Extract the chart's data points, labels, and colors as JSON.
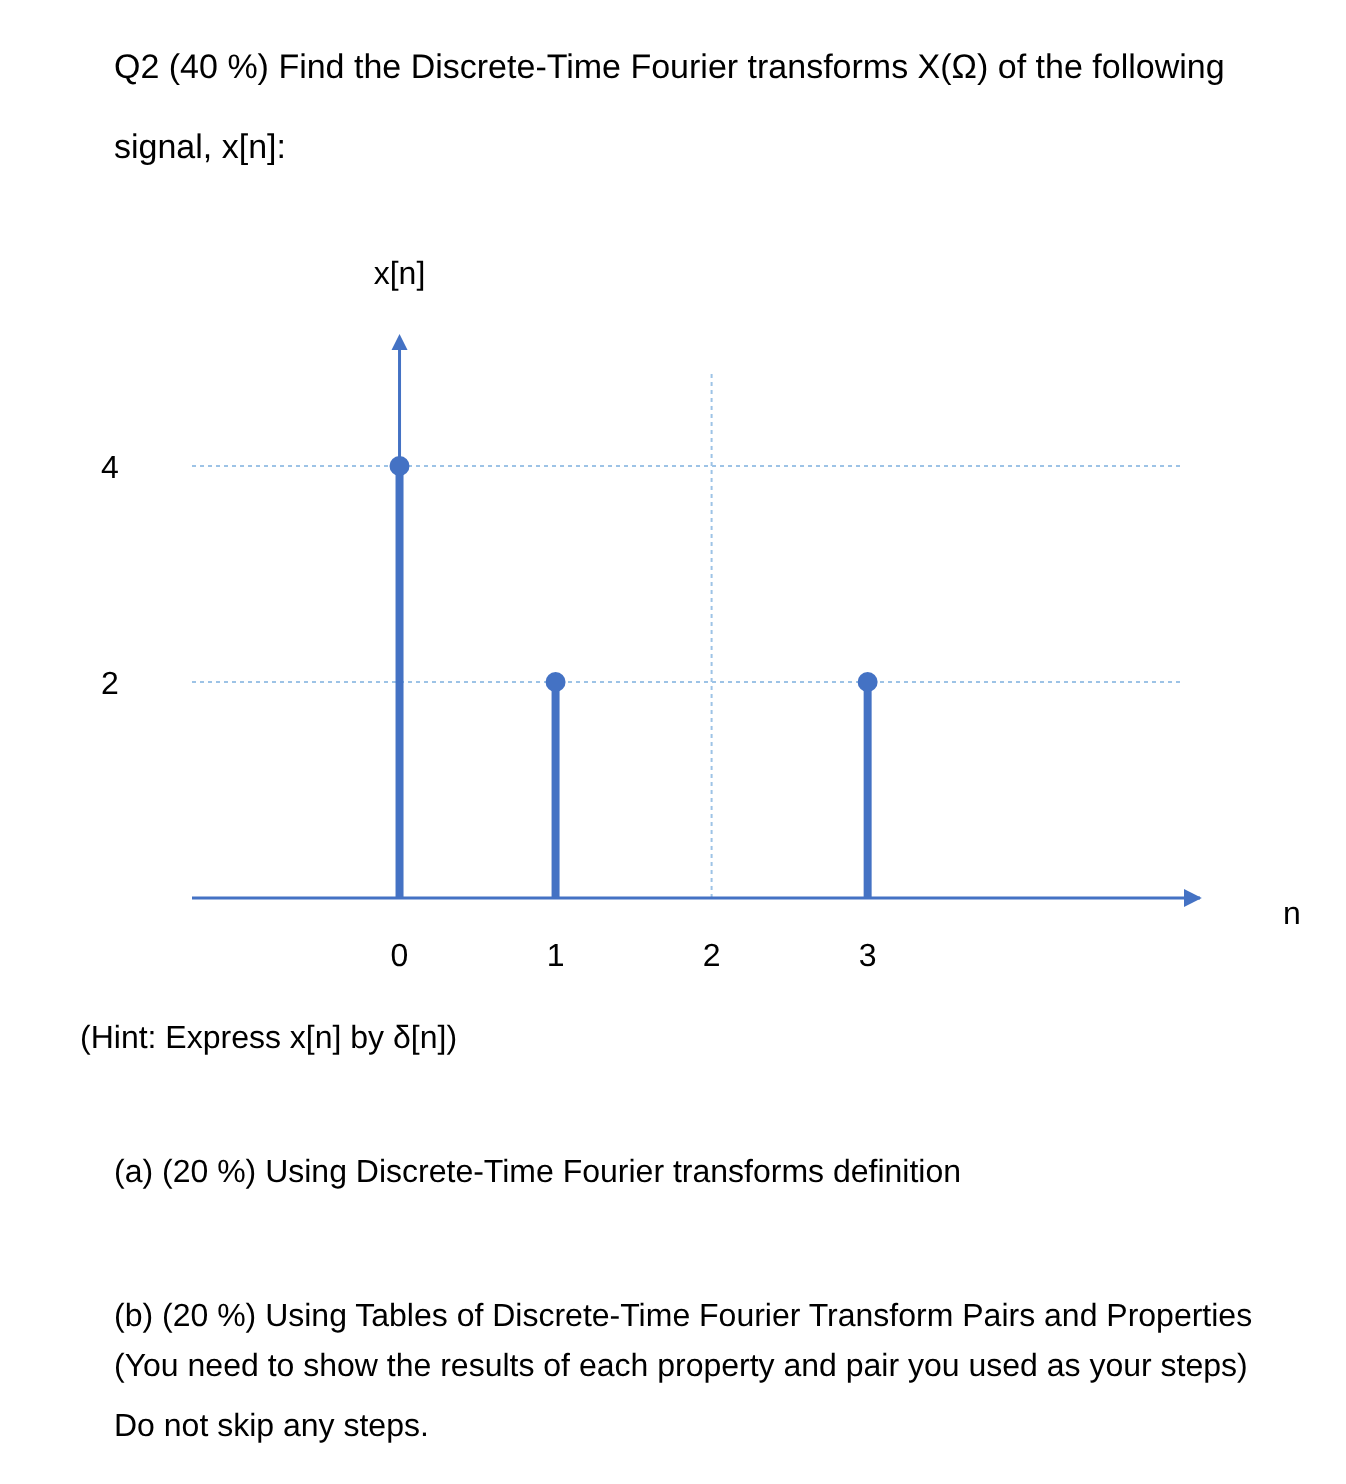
{
  "chart_data": {
    "type": "lollipop",
    "title": "Q2 (40 %) Find the Discrete-Time Fourier transforms X(Ω) of the following signal, x[n]:",
    "xlabel": "n",
    "ylabel": "x[n]",
    "x": [
      0,
      1,
      3
    ],
    "values": [
      4,
      2,
      2
    ],
    "color": "#4472c4",
    "marker": "circle",
    "xlim": [
      -1.33,
      5.13
    ],
    "xticks": [
      0,
      1,
      2,
      3
    ],
    "ylim": [
      0,
      4
    ],
    "yticks": [
      2,
      4
    ],
    "grid": "y",
    "ref_lines": [
      {
        "axis": "x",
        "value": 2,
        "line_style": "dotted",
        "color": "#9dc3e6"
      }
    ],
    "annotations": [
      "(Hint: Express x[n] by δ[n])",
      "(a) (20 %) Using Discrete-Time Fourier transforms definition",
      "(b) (20 %) Using Tables of Discrete-Time Fourier Transform Pairs and Properties",
      "(You need to show the results of each property and pair you used as your steps)",
      "Do not skip any steps."
    ]
  }
}
